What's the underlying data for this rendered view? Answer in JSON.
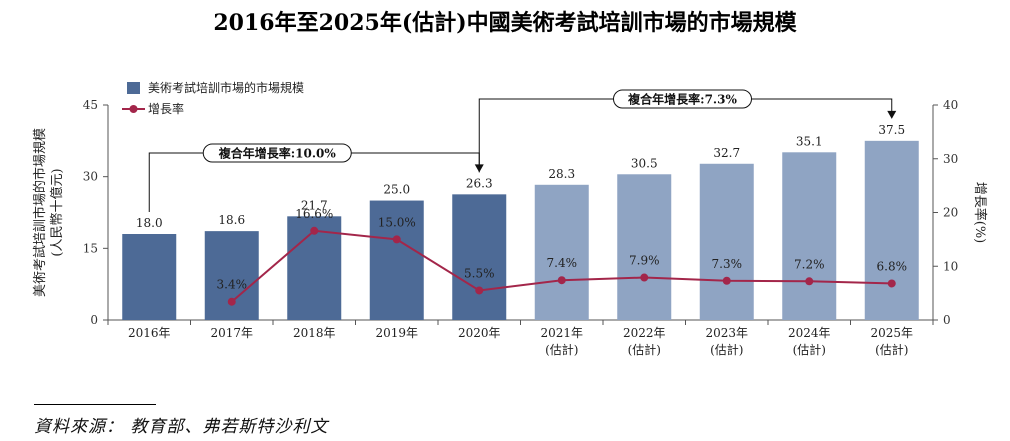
{
  "chart_data": {
    "type": "bar+line",
    "title": "2016年至2025年(估計)中國美術考試培訓市場的市場規模",
    "categories": [
      "2016年",
      "2017年",
      "2018年",
      "2019年",
      "2020年",
      "2021年",
      "2022年",
      "2023年",
      "2024年",
      "2025年"
    ],
    "category_sublabels": [
      "",
      "",
      "",
      "",
      "",
      "(估計)",
      "(估計)",
      "(估計)",
      "(估計)",
      "(估計)"
    ],
    "series": [
      {
        "name": "美術考試培訓市場的市場規模",
        "type": "bar",
        "axis": "left",
        "values": [
          18.0,
          18.6,
          21.7,
          25.0,
          26.3,
          28.3,
          30.5,
          32.7,
          35.1,
          37.5
        ],
        "value_labels": [
          "18.0",
          "18.6",
          "21.7",
          "25.0",
          "26.3",
          "28.3",
          "30.5",
          "32.7",
          "35.1",
          "37.5"
        ],
        "estimated": [
          false,
          false,
          false,
          false,
          false,
          true,
          true,
          true,
          true,
          true
        ]
      },
      {
        "name": "增長率",
        "type": "line",
        "axis": "right",
        "values": [
          null,
          3.4,
          16.6,
          15.0,
          5.5,
          7.4,
          7.9,
          7.3,
          7.2,
          6.8
        ],
        "value_labels": [
          "",
          "3.4%",
          "16.6%",
          "15.0%",
          "5.5%",
          "7.4%",
          "7.9%",
          "7.3%",
          "7.2%",
          "6.8%"
        ]
      }
    ],
    "ylabel_left_lines": [
      "美術考試培訓市場的市場規模",
      "(人民幣十億元)"
    ],
    "ylabel_right": "增長率(%)",
    "ylim_left": [
      0,
      45
    ],
    "yticks_left": [
      0,
      15,
      30,
      45
    ],
    "ylim_right": [
      0,
      40
    ],
    "yticks_right": [
      0,
      10,
      20,
      30,
      40
    ],
    "annotations": [
      {
        "label": "複合年增長率:10.0%",
        "from": "2016年",
        "to": "2020年"
      },
      {
        "label": "複合年增長率:7.3%",
        "from": "2020年",
        "to": "2025年"
      }
    ],
    "legend_position": "top-left",
    "colors": {
      "actual": "#4d6a96",
      "estimated": "#8fa4c3",
      "line": "#a3264a"
    }
  },
  "source": "資料來源： 教育部、弗若斯特沙利文"
}
